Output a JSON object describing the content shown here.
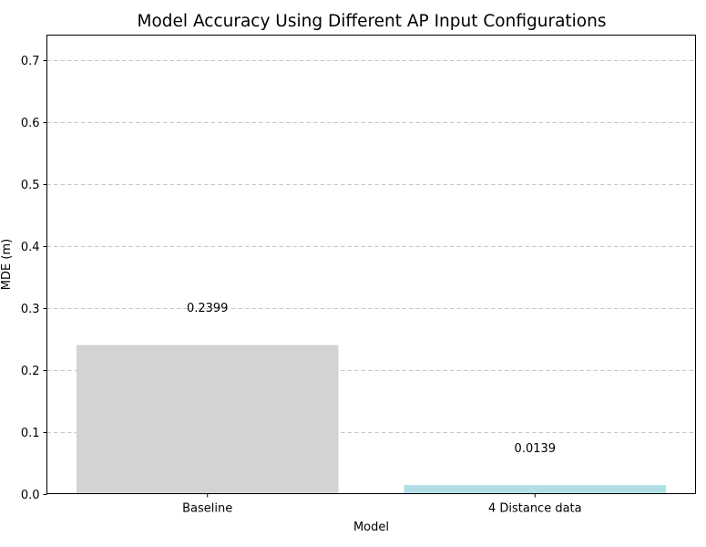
{
  "chart_data": {
    "type": "bar",
    "title": "Model Accuracy Using Different AP Input Configurations",
    "xlabel": "Model",
    "ylabel": "MDE (m)",
    "categories": [
      "Baseline",
      "4 Distance data"
    ],
    "values": [
      0.2399,
      0.0139
    ],
    "value_labels": [
      "0.2399",
      "0.0139"
    ],
    "bar_colors": [
      "#d3d3d3",
      "#b0e0e6"
    ],
    "ylim": [
      0,
      0.74
    ],
    "yticks": [
      0.0,
      0.1,
      0.2,
      0.3,
      0.4,
      0.5,
      0.6,
      0.7
    ],
    "ytick_labels": [
      "0.0",
      "0.1",
      "0.2",
      "0.3",
      "0.4",
      "0.5",
      "0.6",
      "0.7"
    ],
    "grid": "y-dashed",
    "label_offset": 0.06
  }
}
